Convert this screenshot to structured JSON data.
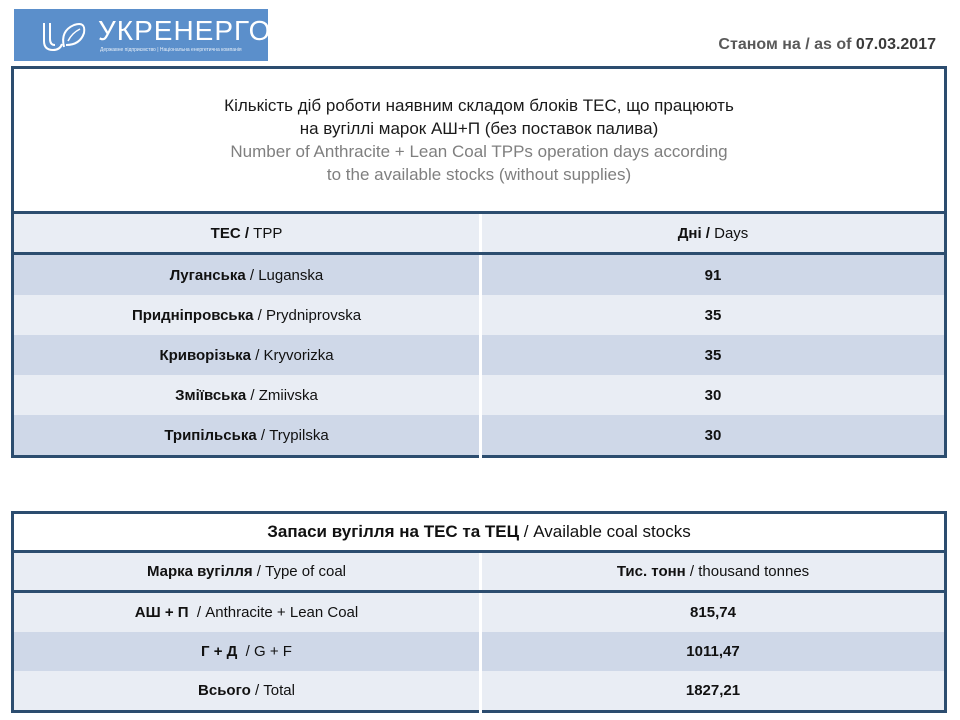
{
  "logo": {
    "name": "УКРЕНЕРГО",
    "subtitle": "Державне підприємство | Національна енергетична компанія",
    "color": "#5b8fcb"
  },
  "as_of": {
    "label": "Станом на / as of",
    "date": "07.03.2017"
  },
  "days_table": {
    "title_ua_1": "Кількість діб роботи наявним складом блоків ТЕС, що працюють",
    "title_ua_2": "на вугіллі марок АШ+П (без поставок палива)",
    "title_en_1": "Number of Anthracite + Lean Coal TPPs operation days according",
    "title_en_2": "to the available stocks (without supplies)",
    "headers": [
      {
        "ua": "ТЕС /",
        "en": " TPP"
      },
      {
        "ua": "Дні /",
        "en": " Days"
      }
    ],
    "rows": [
      {
        "ua": "Луганська",
        "en": " / Luganska",
        "days": "91"
      },
      {
        "ua": "Придніпровська",
        "en": " / Prydniprovska",
        "days": "35"
      },
      {
        "ua": "Криворізька",
        "en": " / Kryvorizka",
        "days": "35"
      },
      {
        "ua": "Зміївська",
        "en": " / Zmiivska",
        "days": "30"
      },
      {
        "ua": "Трипільська",
        "en": " / Trypilska",
        "days": "30"
      }
    ]
  },
  "stocks_table": {
    "title_ua": "Запаси вугілля на ТЕС та ТЕЦ",
    "title_en": " / Available coal stocks",
    "headers": [
      {
        "ua": "Марка вугілля",
        "en": " / Type of coal"
      },
      {
        "ua": "Тис. тонн",
        "en": " / thousand tonnes"
      }
    ],
    "rows": [
      {
        "ua": "АШ + П",
        "en": "  / Anthracite + Lean Coal",
        "value": "815,74"
      },
      {
        "ua": "Г + Д",
        "en": "  / G + F",
        "value": "1011,47"
      },
      {
        "ua": "Всього",
        "en": " / Total",
        "value": "1827,21"
      }
    ]
  },
  "colors": {
    "border": "#2c4d6f",
    "row_dark": "#cfd8e8",
    "row_light": "#e9edf4"
  }
}
